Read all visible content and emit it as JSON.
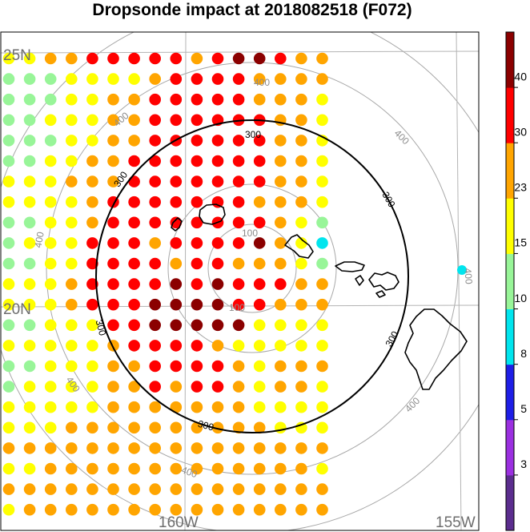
{
  "title": "Dropsonde impact at 2018082518 (F072)",
  "map": {
    "projection": "polar stereographic",
    "lat_labels": [
      "25N",
      "20N"
    ],
    "lon_labels": [
      "160W",
      "155W"
    ],
    "range_rings": [
      {
        "label": "100",
        "positions": [
          "upper",
          "lower"
        ]
      },
      {
        "label": "300",
        "positions": [
          "top",
          "left",
          "right",
          "bottom-left",
          "bottom",
          "right-lower"
        ]
      },
      {
        "label": "400",
        "positions": [
          "top",
          "upper-left",
          "upper-right",
          "left",
          "right",
          "lower-left",
          "lower-right",
          "bottom"
        ]
      }
    ]
  },
  "colorbar": {
    "labels": [
      "3",
      "5",
      "8",
      "10",
      "15",
      "23",
      "30",
      "40"
    ],
    "colors": [
      "#5b2d8e",
      "#9b30e0",
      "#1e1ee6",
      "#00e5ee",
      "#98f598",
      "#ffff00",
      "#ffa500",
      "#ff0000",
      "#8b0000"
    ]
  },
  "grid": {
    "rows": [
      "5566777776788766",
      "4445555677776666",
      "4445566777776665",
      "4455566777777665",
      "4445566777777665",
      "4455667777777665",
      "5556667777777665",
      "5555677777776665",
      "4455677777777654",
      "4555777677778653",
      "4455777767766654",
      "5556777787877766",
      "5556777888877666",
      "4455577888885555",
      "5555567777655555",
      "4455566777765666",
      "4555566767765665",
      "5555566666665555",
      "5556666666666555",
      "6666666666666666",
      "5566666666666665",
      "6666666666666666",
      "5666666666666666"
    ]
  }
}
